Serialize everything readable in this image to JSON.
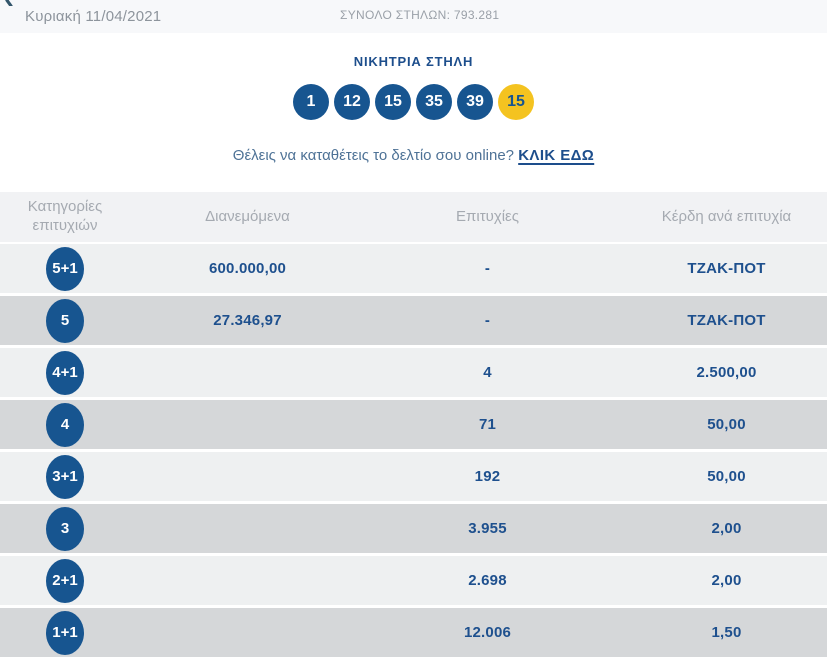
{
  "header": {
    "date": "Κυριακή 11/04/2021",
    "total_columns": "ΣΥΝΟΛΟ ΣΤΗΛΩΝ: 793.281"
  },
  "winning": {
    "title": "ΝΙΚΗΤΡΙΑ ΣΤΗΛΗ",
    "numbers": [
      "1",
      "12",
      "15",
      "35",
      "39"
    ],
    "joker": "15"
  },
  "cta": {
    "text": "Θέλεις να καταθέτεις το δελτίο σου online?",
    "link_label": "ΚΛΙΚ ΕΔΩ"
  },
  "table": {
    "headers": [
      "Κατηγορίες επιτυχιών",
      "Διανεμόμενα",
      "Επιτυχίες",
      "Κέρδη ανά επιτυχία"
    ],
    "rows": [
      {
        "category": "5+1",
        "distributed": "600.000,00",
        "winners": "-",
        "prize": "ΤΖΑΚ-ΠΟΤ"
      },
      {
        "category": "5",
        "distributed": "27.346,97",
        "winners": "-",
        "prize": "ΤΖΑΚ-ΠΟΤ"
      },
      {
        "category": "4+1",
        "distributed": "",
        "winners": "4",
        "prize": "2.500,00"
      },
      {
        "category": "4",
        "distributed": "",
        "winners": "71",
        "prize": "50,00"
      },
      {
        "category": "3+1",
        "distributed": "",
        "winners": "192",
        "prize": "50,00"
      },
      {
        "category": "3",
        "distributed": "",
        "winners": "3.955",
        "prize": "2,00"
      },
      {
        "category": "2+1",
        "distributed": "",
        "winners": "2.698",
        "prize": "2,00"
      },
      {
        "category": "1+1",
        "distributed": "",
        "winners": "12.006",
        "prize": "1,50"
      }
    ]
  },
  "colors": {
    "ball_blue": "#175590",
    "ball_yellow": "#f4c320",
    "value_blue": "#1e508e",
    "row_light": "#eef0f1",
    "row_dark": "#d5d7d9"
  }
}
